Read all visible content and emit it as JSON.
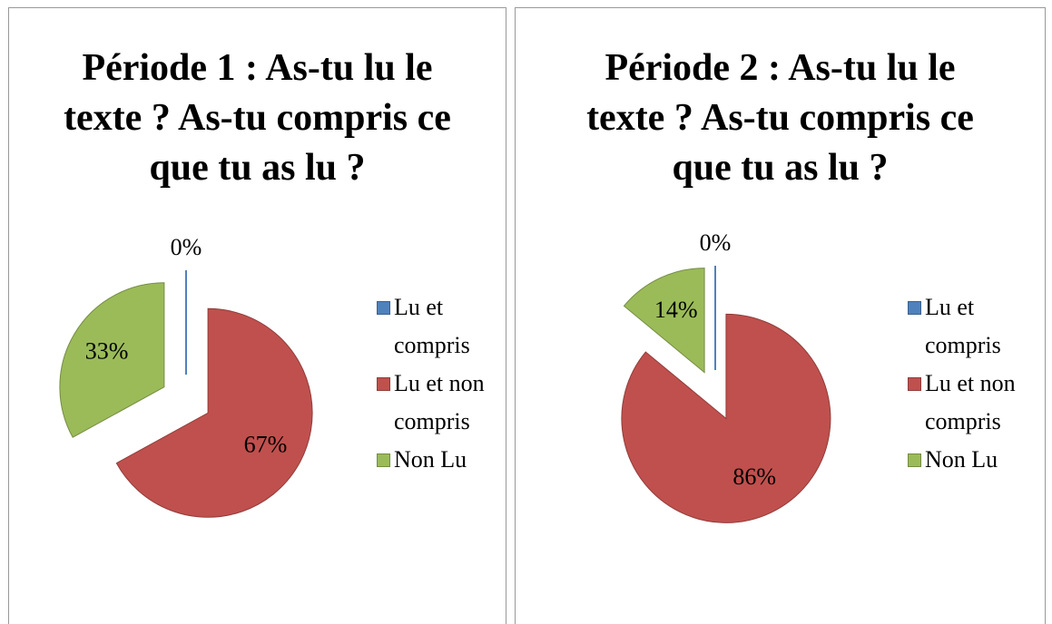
{
  "chart_data": [
    {
      "type": "pie",
      "title": "Période 1 : As-tu lu le texte ? As-tu compris ce que tu as lu ?",
      "categories": [
        "Lu et compris",
        "Lu et non compris",
        "Non Lu"
      ],
      "values": [
        0,
        67,
        33
      ],
      "value_labels": [
        "0%",
        "67%",
        "33%"
      ],
      "colors": [
        "#4f81bd",
        "#c0504d",
        "#9bbb59"
      ],
      "legend": "right"
    },
    {
      "type": "pie",
      "title": "Période 2 : As-tu lu le texte ? As-tu compris ce que tu as lu ?",
      "categories": [
        "Lu et compris",
        "Lu et non compris",
        "Non Lu"
      ],
      "values": [
        0,
        86,
        14
      ],
      "value_labels": [
        "0%",
        "86%",
        "14%"
      ],
      "colors": [
        "#4f81bd",
        "#c0504d",
        "#9bbb59"
      ],
      "legend": "right"
    }
  ]
}
